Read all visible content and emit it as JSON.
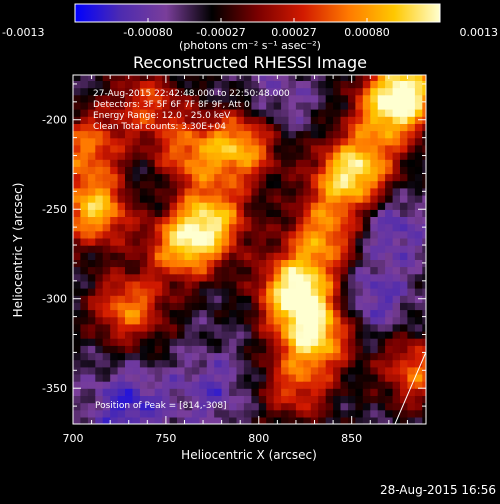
{
  "chart_data": {
    "type": "heatmap",
    "title": "Reconstructed RHESSI Image",
    "xlabel": "Heliocentric X (arcsec)",
    "ylabel": "Heliocentric Y (arcsec)",
    "xlim": [
      700,
      890
    ],
    "ylim": [
      -370,
      -175
    ],
    "xticks": [
      700,
      750,
      800,
      850
    ],
    "yticks": [
      -200,
      -250,
      -300,
      -350
    ],
    "colorbar": {
      "ticks": [
        "-0.0013",
        "-0.00080",
        "-0.00027",
        "0.00027",
        "0.00080",
        "0.0013"
      ],
      "range": [
        -0.0013,
        0.0013
      ],
      "unit_label": "(photons cm⁻² s⁻¹ asec⁻²)",
      "stops": [
        "#0000ff",
        "#4d2bb0",
        "#7a3e9a",
        "#000000",
        "#7a0000",
        "#d21a00",
        "#ff7a00",
        "#ffc800",
        "#ffffd0"
      ]
    },
    "annotations": [
      "27-Aug-2015 22:42:48.000 to 22:50:48.000",
      "Detectors: 3F 5F 6F 7F 8F 9F, Att 0",
      "Energy Range: 12.0 - 25.0 keV",
      "Clean    Total counts: 3.30E+04"
    ],
    "peak_label": "Position of Peak = [814,-308]",
    "peak": [
      814,
      -308
    ],
    "emission_sources": [
      {
        "x": 820,
        "y": -295,
        "value": 0.0013
      },
      {
        "x": 830,
        "y": -320,
        "value": 0.0011
      },
      {
        "x": 760,
        "y": -270,
        "value": 0.0009
      },
      {
        "x": 775,
        "y": -255,
        "value": 0.0008
      },
      {
        "x": 790,
        "y": -215,
        "value": 0.0009
      },
      {
        "x": 760,
        "y": -220,
        "value": 0.0006
      },
      {
        "x": 712,
        "y": -250,
        "value": 0.001
      },
      {
        "x": 708,
        "y": -215,
        "value": 0.0006
      },
      {
        "x": 730,
        "y": -305,
        "value": 0.0007
      },
      {
        "x": 870,
        "y": -195,
        "value": 0.0007
      },
      {
        "x": 880,
        "y": -182,
        "value": 0.0009
      },
      {
        "x": 855,
        "y": -225,
        "value": 0.0006
      },
      {
        "x": 885,
        "y": -340,
        "value": 0.0006
      },
      {
        "x": 835,
        "y": -265,
        "value": 0.0007
      },
      {
        "x": 845,
        "y": -235,
        "value": 0.0005
      },
      {
        "x": 820,
        "y": -350,
        "value": 0.0004
      },
      {
        "x": 740,
        "y": -190,
        "value": 0.0004
      }
    ],
    "negative_regions": [
      {
        "x": 730,
        "y": -360,
        "value": -0.0006
      },
      {
        "x": 860,
        "y": -300,
        "value": -0.0005
      },
      {
        "x": 870,
        "y": -260,
        "value": -0.0005
      },
      {
        "x": 775,
        "y": -350,
        "value": -0.0004
      },
      {
        "x": 810,
        "y": -190,
        "value": -0.0003
      },
      {
        "x": 745,
        "y": -235,
        "value": -0.0003
      }
    ]
  },
  "footer": {
    "date": "28-Aug-2015 16:56"
  }
}
